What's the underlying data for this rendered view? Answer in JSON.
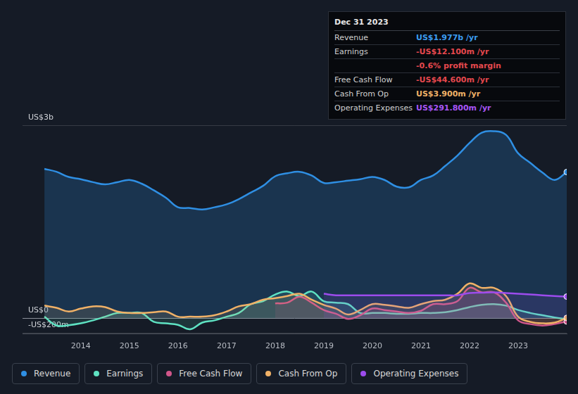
{
  "chart_data": {
    "type": "line",
    "x": [
      2013.25,
      2013.5,
      2013.75,
      2014,
      2014.25,
      2014.5,
      2014.75,
      2015,
      2015.25,
      2015.5,
      2015.75,
      2016,
      2016.25,
      2016.5,
      2016.75,
      2017,
      2017.25,
      2017.5,
      2017.75,
      2018,
      2018.25,
      2018.5,
      2018.75,
      2019,
      2019.25,
      2019.5,
      2019.75,
      2020,
      2020.25,
      2020.5,
      2020.75,
      2021,
      2021.25,
      2021.5,
      2021.75,
      2022,
      2022.25,
      2022.5,
      2022.75,
      2023,
      2023.25,
      2023.5,
      2023.75,
      2024
    ],
    "xlim": [
      2012.8,
      2024
    ],
    "xticks": [
      2014,
      2015,
      2016,
      2017,
      2018,
      2019,
      2020,
      2021,
      2022,
      2023
    ],
    "ylim": [
      -215,
      2610
    ],
    "yticks": [
      {
        "value": 2610,
        "label": "US$3b"
      },
      {
        "value": 0,
        "label": "US$0"
      },
      {
        "value": -200,
        "label": "-US$200m"
      }
    ],
    "grid": true,
    "legend": "bottom left",
    "series": [
      {
        "name": "Revenue",
        "color": "#2f8fe3",
        "values": [
          2020,
          1980,
          1910,
          1880,
          1840,
          1810,
          1840,
          1870,
          1820,
          1730,
          1630,
          1500,
          1490,
          1470,
          1500,
          1540,
          1610,
          1700,
          1790,
          1920,
          1960,
          1980,
          1930,
          1830,
          1840,
          1860,
          1880,
          1910,
          1870,
          1780,
          1770,
          1870,
          1930,
          2060,
          2200,
          2370,
          2510,
          2530,
          2480,
          2230,
          2100,
          1970,
          1870,
          1977
        ]
      },
      {
        "name": "Earnings",
        "color": "#5fe3c3",
        "values": [
          20,
          -100,
          -95,
          -70,
          -30,
          20,
          70,
          70,
          70,
          -50,
          -70,
          -90,
          -150,
          -60,
          -30,
          20,
          70,
          190,
          230,
          320,
          360,
          300,
          360,
          230,
          210,
          190,
          70,
          70,
          70,
          60,
          60,
          70,
          70,
          80,
          110,
          150,
          180,
          190,
          170,
          110,
          70,
          40,
          10,
          -12.1
        ]
      },
      {
        "name": "Free Cash Flow",
        "color": "#d0568a",
        "values": [
          null,
          null,
          null,
          null,
          null,
          null,
          null,
          null,
          null,
          null,
          null,
          null,
          null,
          null,
          null,
          null,
          null,
          null,
          null,
          200,
          210,
          290,
          210,
          110,
          60,
          -10,
          40,
          130,
          110,
          90,
          70,
          100,
          190,
          190,
          230,
          410,
          350,
          350,
          210,
          -30,
          -80,
          -100,
          -80,
          -44.6
        ]
      },
      {
        "name": "Cash From Op",
        "color": "#f0b167",
        "values": [
          170,
          140,
          90,
          130,
          160,
          150,
          90,
          70,
          70,
          80,
          90,
          20,
          20,
          20,
          40,
          90,
          160,
          190,
          250,
          270,
          300,
          330,
          250,
          180,
          130,
          50,
          110,
          190,
          180,
          160,
          140,
          190,
          230,
          250,
          330,
          470,
          410,
          410,
          300,
          20,
          -50,
          -70,
          -60,
          3.9
        ]
      },
      {
        "name": "Operating Expenses",
        "color": "#9c4ced",
        "values": [
          null,
          null,
          null,
          null,
          null,
          null,
          null,
          null,
          null,
          null,
          null,
          null,
          null,
          null,
          null,
          null,
          null,
          null,
          null,
          null,
          null,
          null,
          null,
          330,
          310,
          310,
          310,
          310,
          310,
          310,
          310,
          310,
          310,
          310,
          310,
          340,
          345,
          350,
          340,
          330,
          320,
          310,
          300,
          291.8
        ]
      }
    ]
  },
  "tooltip": {
    "title": "Dec 31 2023",
    "rows": [
      {
        "label": "Revenue",
        "value": "US$1.977b /yr",
        "color": "#3b9cf0"
      },
      {
        "label": "Earnings",
        "value": "-US$12.100m /yr",
        "color": "#e5484d"
      },
      {
        "value": "-0.6% profit margin",
        "color": "#e5484d"
      },
      {
        "label": "Free Cash Flow",
        "value": "-US$44.600m /yr",
        "color": "#e5484d"
      },
      {
        "label": "Cash From Op",
        "value": "US$3.900m /yr",
        "color": "#f0b167"
      },
      {
        "label": "Operating Expenses",
        "value": "US$291.800m /yr",
        "color": "#a855f7"
      }
    ]
  }
}
